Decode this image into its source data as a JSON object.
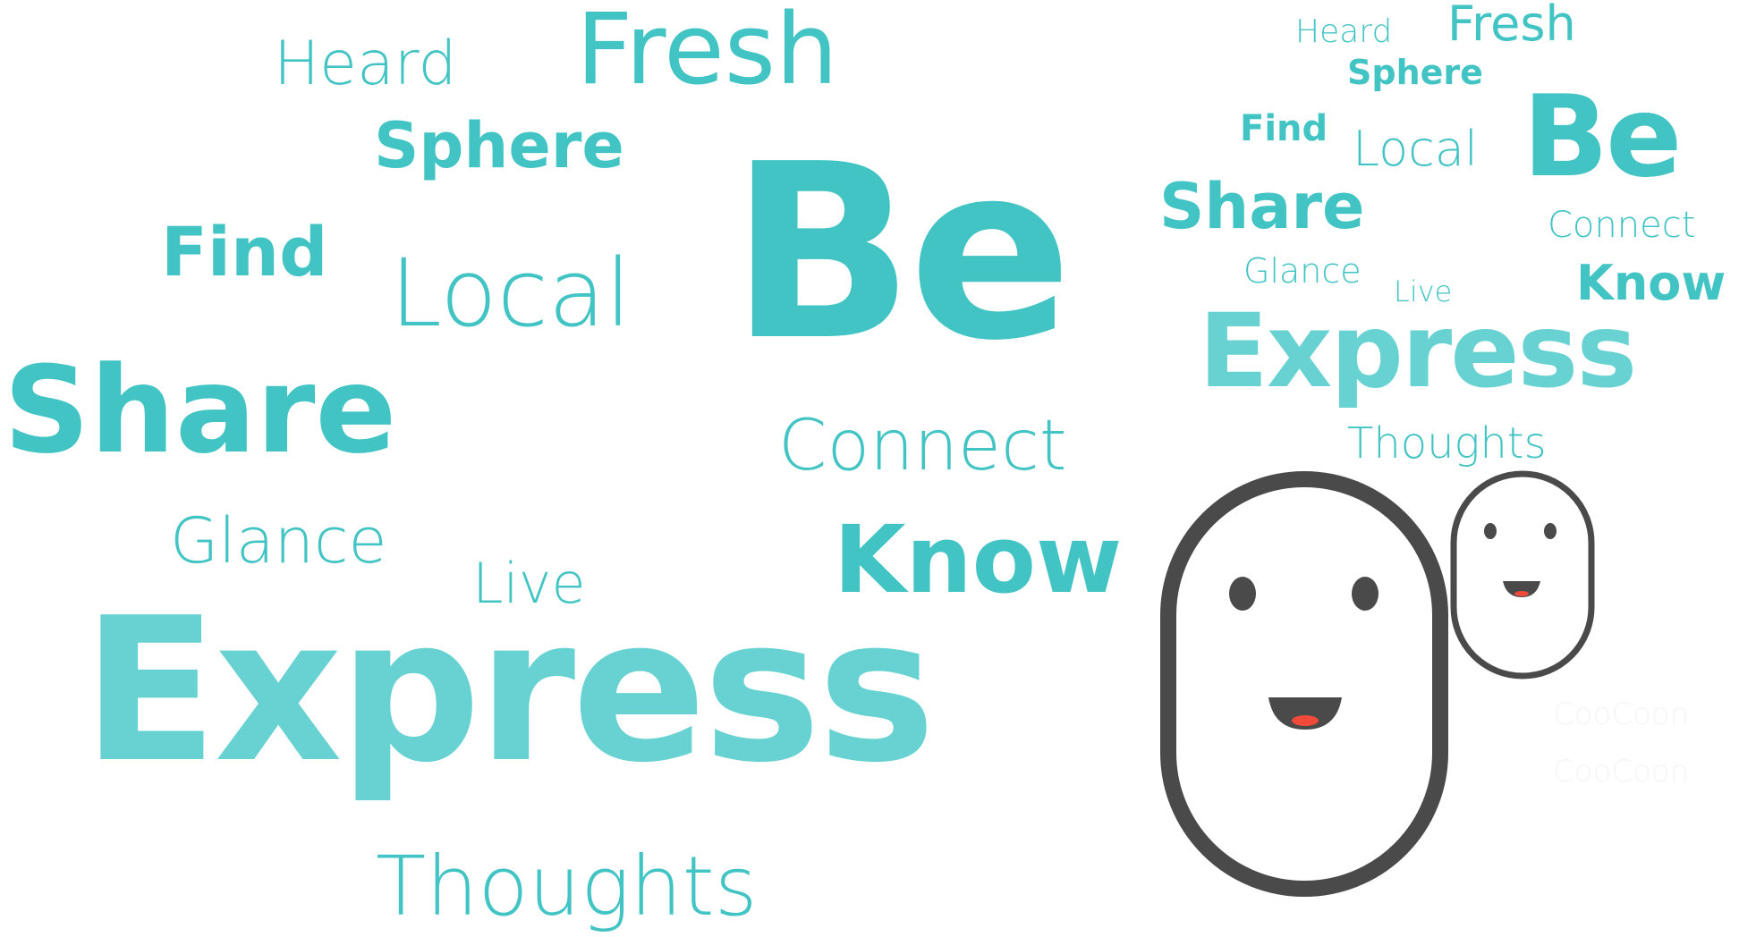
{
  "colors": {
    "teal": "#42c4c4",
    "pale_teal": "#68d2d2",
    "outline": "#4a4a4a",
    "mouth_tongue": "#f04a3a",
    "watermark": "#f5f5f5"
  },
  "cloud_large": {
    "heard": "Heard",
    "fresh": "Fresh",
    "sphere": "Sphere",
    "be": "Be",
    "find": "Find",
    "local": "Local",
    "share": "Share",
    "connect": "Connect",
    "glance": "Glance",
    "know": "Know",
    "live": "Live",
    "express": "Express",
    "thoughts": "Thoughts"
  },
  "cloud_small": {
    "heard": "Heard",
    "fresh": "Fresh",
    "sphere": "Sphere",
    "be": "Be",
    "find": "Find",
    "local": "Local",
    "share": "Share",
    "connect": "Connect",
    "glance": "Glance",
    "know": "Know",
    "live": "Live",
    "express": "Express",
    "thoughts": "Thoughts"
  },
  "watermarks": [
    "CooCoon",
    "CooCoon"
  ],
  "icons": {
    "large_mascot": "cocoon-face-icon",
    "small_mascot": "cocoon-face-icon"
  }
}
